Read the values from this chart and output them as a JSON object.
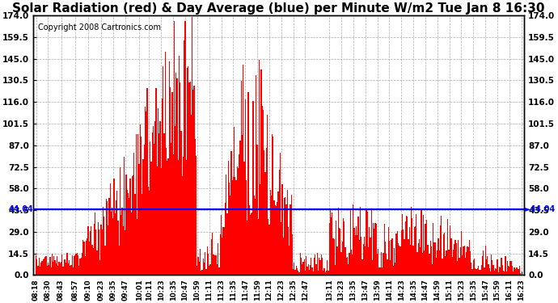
{
  "title": "Solar Radiation (red) & Day Average (blue) per Minute W/m2 Tue Jan 8 16:30",
  "copyright": "Copyright 2008 Cartronics.com",
  "day_average": 44.04,
  "y_ticks": [
    0.0,
    14.5,
    29.0,
    43.5,
    58.0,
    72.5,
    87.0,
    101.5,
    116.0,
    130.5,
    145.0,
    159.5,
    174.0
  ],
  "ylim": [
    0,
    174.0
  ],
  "bar_color": "red",
  "avg_line_color": "blue",
  "background_color": "white",
  "grid_color": "#aaaaaa",
  "label_times": [
    "08:18",
    "08:30",
    "08:43",
    "08:57",
    "09:10",
    "09:23",
    "09:35",
    "09:47",
    "10:01",
    "10:11",
    "10:23",
    "10:35",
    "10:47",
    "10:59",
    "11:11",
    "11:23",
    "11:35",
    "11:47",
    "11:59",
    "12:11",
    "12:23",
    "12:35",
    "12:47",
    "13:11",
    "13:23",
    "13:35",
    "13:47",
    "13:59",
    "14:11",
    "14:23",
    "14:35",
    "14:47",
    "14:59",
    "15:11",
    "15:23",
    "15:35",
    "15:47",
    "15:59",
    "16:11",
    "16:23"
  ],
  "title_fontsize": 11,
  "copyright_fontsize": 7
}
